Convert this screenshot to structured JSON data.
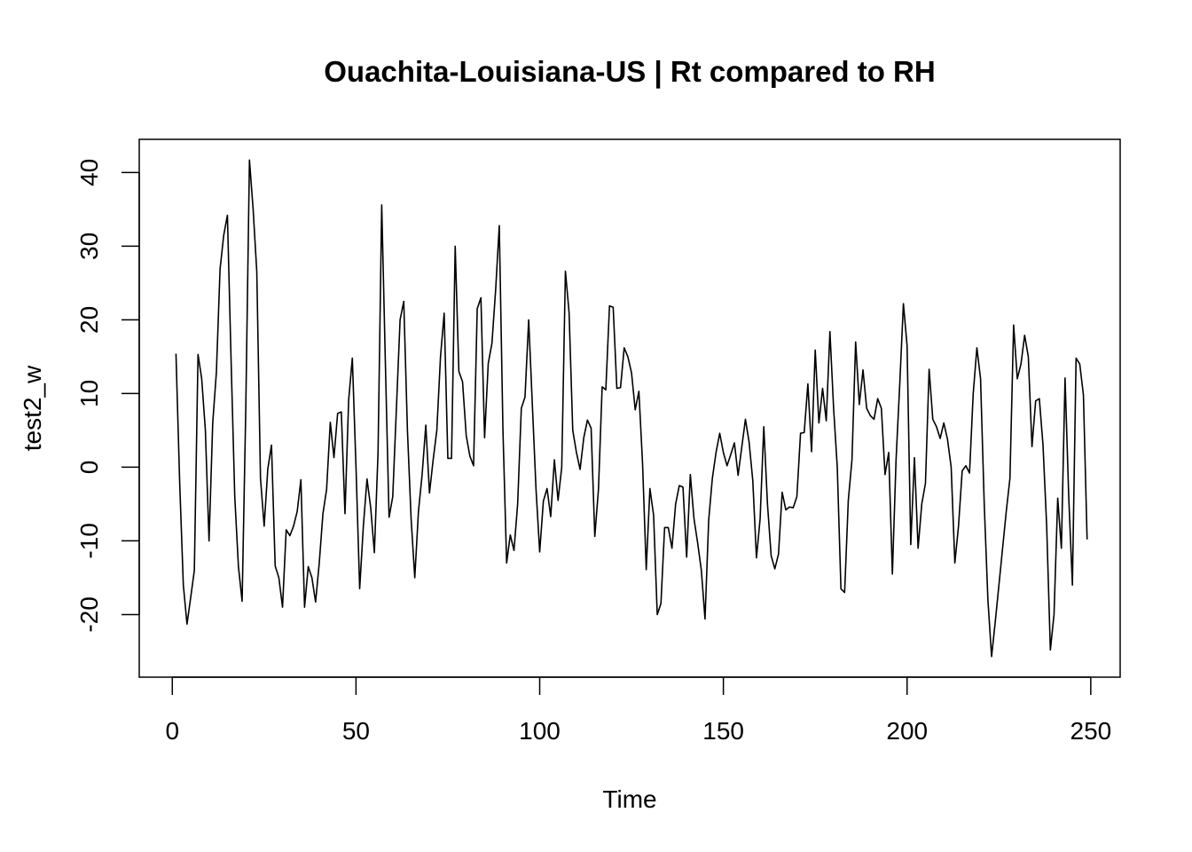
{
  "chart_data": {
    "type": "line",
    "title": "Ouachita-Louisiana-US | Rt compared to RH",
    "xlabel": "Time",
    "ylabel": "test2_w",
    "xlim": [
      -9,
      258
    ],
    "ylim": [
      -28.5,
      44.5
    ],
    "x_ticks": [
      0,
      50,
      100,
      150,
      200,
      250
    ],
    "y_ticks": [
      -20,
      -10,
      0,
      10,
      20,
      30,
      40
    ],
    "x_tick_labels": [
      "0",
      "50",
      "100",
      "150",
      "200",
      "250"
    ],
    "y_tick_labels": [
      "-20",
      "-10",
      "0",
      "10",
      "20",
      "30",
      "40"
    ],
    "grid": false,
    "line_color": "#000000",
    "x_start": 1,
    "series": [
      {
        "values": [
          15.4,
          -2.0,
          -16.0,
          -21.3,
          -17.7,
          -14.0,
          15.3,
          12.0,
          5.0,
          -10.0,
          6.0,
          12.9,
          26.9,
          31.5,
          34.2,
          14.5,
          -4.0,
          -13.5,
          -18.2,
          8.0,
          41.7,
          35.0,
          26.5,
          -1.5,
          -8.0,
          -0.2,
          3.0,
          -13.4,
          -15.0,
          -19.0,
          -8.5,
          -9.3,
          -8.0,
          -6.0,
          -1.7,
          -19.0,
          -13.5,
          -15.0,
          -18.3,
          -13.0,
          -6.3,
          -3.0,
          6.1,
          1.3,
          7.3,
          7.5,
          -6.3,
          9.1,
          14.8,
          0.0,
          -16.5,
          -8.0,
          -1.6,
          -5.5,
          -11.6,
          2.0,
          35.6,
          14.0,
          -6.8,
          -4.0,
          8.0,
          20.0,
          22.5,
          5.0,
          -7.0,
          -15.0,
          -6.0,
          -1.0,
          5.7,
          -3.5,
          1.0,
          5.0,
          15.0,
          20.9,
          1.2,
          1.2,
          30.0,
          13.0,
          11.6,
          4.3,
          1.5,
          0.2,
          21.5,
          23.0,
          4.0,
          14.1,
          16.8,
          24.0,
          32.8,
          5.0,
          -13.0,
          -9.2,
          -11.3,
          -5.0,
          8.0,
          9.5,
          20.0,
          8.5,
          -3.0,
          -11.5,
          -4.6,
          -2.9,
          -6.7,
          1.0,
          -4.5,
          0.0,
          26.6,
          21.0,
          5.0,
          2.0,
          -0.3,
          4.0,
          6.4,
          5.3,
          -9.4,
          -3.0,
          10.9,
          10.5,
          21.9,
          21.7,
          10.7,
          10.8,
          16.2,
          15.0,
          12.8,
          7.8,
          10.3,
          0.5,
          -13.9,
          -2.9,
          -6.5,
          -20.0,
          -18.5,
          -8.2,
          -8.2,
          -11.0,
          -5.0,
          -2.5,
          -2.7,
          -12.2,
          -1.0,
          -7.0,
          -10.3,
          -14.0,
          -20.6,
          -7.2,
          -1.5,
          2.0,
          4.6,
          2.0,
          0.2,
          1.7,
          3.3,
          -1.1,
          2.7,
          6.5,
          3.4,
          -1.8,
          -12.3,
          -7.0,
          5.5,
          -5.0,
          -12.0,
          -13.8,
          -11.8,
          -3.4,
          -5.8,
          -5.4,
          -5.5,
          -4.0,
          4.6,
          4.7,
          11.3,
          2.1,
          15.9,
          6.0,
          10.7,
          6.3,
          18.4,
          8.0,
          0.0,
          -16.5,
          -17.0,
          -4.5,
          1.0,
          17.0,
          8.5,
          13.2,
          8.0,
          7.0,
          6.5,
          9.3,
          8.0,
          -1.0,
          2.0,
          -14.5,
          1.0,
          11.2,
          22.2,
          16.5,
          -10.5,
          1.3,
          -11.0,
          -5.0,
          -2.2,
          13.3,
          6.5,
          5.5,
          3.9,
          6.0,
          3.8,
          0.0,
          -13.0,
          -8.0,
          -0.5,
          0.2,
          -0.8,
          10.0,
          16.2,
          12.0,
          -5.0,
          -18.0,
          -25.7,
          -21.0,
          -16.0,
          -11.0,
          -6.0,
          -1.5,
          19.3,
          12.0,
          14.0,
          17.9,
          15.0,
          2.8,
          9.0,
          9.3,
          3.0,
          -8.0,
          -24.8,
          -20.0,
          -4.2,
          -11.0,
          12.1,
          -4.0,
          -16.0,
          14.8,
          14.0,
          9.8,
          -9.8
        ]
      }
    ]
  }
}
